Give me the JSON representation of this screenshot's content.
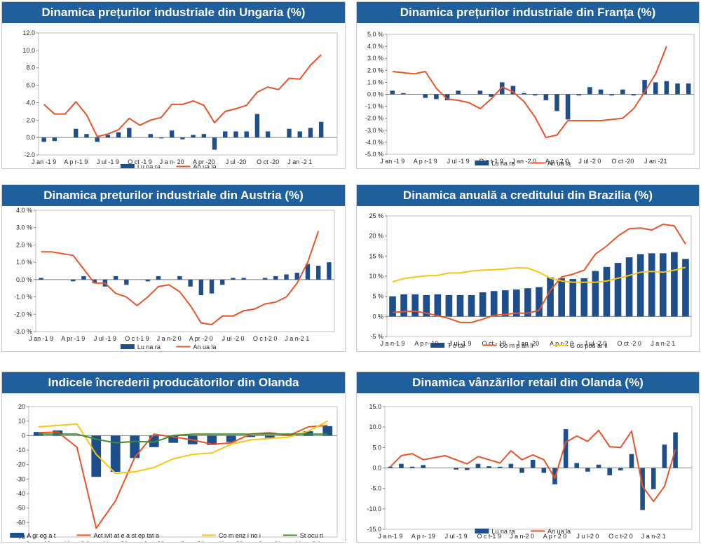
{
  "charts": [
    {
      "title": "Dinamica prețurilor industriale din Ungaria (%)",
      "chart_data": {
        "type": "bar",
        "title": "Dinamica prețurilor industriale din Ungaria (%)",
        "categories": [
          "Jan-19",
          "Feb-19",
          "Mar-19",
          "Apr-19",
          "May-19",
          "Jun-19",
          "Jul-19",
          "Aug-19",
          "Sep-19",
          "Oct-19",
          "Nov-19",
          "Dec-19",
          "Jan-20",
          "Feb-20",
          "Mar-20",
          "Apr-20",
          "May-20",
          "Jun-20",
          "Jul-20",
          "Aug-20",
          "Sep-20",
          "Oct-20",
          "Nov-20",
          "Dec-20",
          "Jan-21",
          "Feb-21",
          "Mar-21",
          "Apr-21"
        ],
        "x_tick_labels": [
          "J an -1 9",
          "A p r-1 9",
          "J ul -1 9",
          "O ct -1 9",
          "J a n- 20",
          "A pr -20",
          "J ul -20",
          "O ct -20",
          "J an -2 1"
        ],
        "x_tick_every": 3,
        "y_tick_labels": [
          "-2.0",
          "0.0",
          "2.0",
          "4.0",
          "6.0",
          "8.0",
          "10.0",
          "12.0"
        ],
        "ylim": [
          -2,
          12
        ],
        "y_step": 2,
        "series": [
          {
            "name": "Lu na ra",
            "kind": "bar",
            "color": "#1f4e8c",
            "values": [
              -0.5,
              -0.4,
              0,
              1.0,
              0.4,
              -0.5,
              0.3,
              0.6,
              1.1,
              0,
              0.4,
              -0.1,
              0.8,
              -0.2,
              0.3,
              0.4,
              -1.4,
              0.7,
              0.7,
              0.7,
              2.7,
              0.7,
              0,
              1.0,
              0.7,
              1.1,
              1.8,
              null
            ]
          },
          {
            "name": "An ua la",
            "kind": "line",
            "color": "#e8542a",
            "values": [
              3.8,
              2.7,
              2.7,
              4.1,
              2.6,
              0.1,
              0.4,
              0.9,
              2.2,
              1.4,
              2.0,
              2.3,
              3.8,
              3.8,
              4.2,
              3.7,
              1.7,
              3.0,
              3.3,
              3.7,
              5.2,
              5.8,
              5.5,
              6.8,
              6.7,
              8.3,
              9.5,
              null
            ]
          }
        ]
      }
    },
    {
      "title": "Dinamica prețurilor industriale din Franța (%)",
      "chart_data": {
        "type": "bar",
        "title": "Dinamica prețurilor industriale din Franța (%)",
        "categories": [
          "Jan-19",
          "Feb-19",
          "Mar-19",
          "Apr-19",
          "May-19",
          "Jun-19",
          "Jul-19",
          "Aug-19",
          "Sep-19",
          "Oct-19",
          "Nov-19",
          "Dec-19",
          "Jan-20",
          "Feb-20",
          "Mar-20",
          "Apr-20",
          "May-20",
          "Jun-20",
          "Jul-20",
          "Aug-20",
          "Sep-20",
          "Oct-20",
          "Nov-20",
          "Dec-20",
          "Jan-21",
          "Feb-21",
          "Mar-21",
          "Apr-21"
        ],
        "x_tick_labels": [
          "J an -1 9",
          "A p r-1 9",
          "J ul -1 9",
          "O c t-1 9",
          "J an -2 0",
          "A p r 2 0",
          "J ul -2 0",
          "O ct -20",
          "J an -21"
        ],
        "x_tick_every": 3,
        "y_tick_labels": [
          "-5.0 %",
          "-4.0 %",
          "-3.0 %",
          "-2.0 %",
          "-1.0 %",
          "0.0 %",
          "1.0 %",
          "2.0 %",
          "3.0 %",
          "4.0 %",
          "5.0 %"
        ],
        "ylim": [
          -5,
          5
        ],
        "y_step": 1,
        "series": [
          {
            "name": "Lu na ra",
            "kind": "bar",
            "color": "#1f4e8c",
            "values": [
              0.3,
              0.1,
              0,
              -0.3,
              -0.4,
              -0.5,
              0.3,
              0,
              0.3,
              -0.2,
              1.0,
              0.7,
              0.1,
              -0.1,
              -0.5,
              -1.4,
              -2.1,
              -0.1,
              0.6,
              0.4,
              -0.1,
              0.4,
              -0.1,
              1.2,
              1.0,
              1.1,
              0.9,
              0.9
            ]
          },
          {
            "name": "An ua la",
            "kind": "line",
            "color": "#e8542a",
            "values": [
              1.9,
              1.8,
              1.7,
              1.9,
              0.5,
              -0.4,
              -0.5,
              -0.7,
              -1.2,
              -0.4,
              0.6,
              0.2,
              -0.6,
              -1.9,
              -3.6,
              -3.4,
              -2.2,
              -2.2,
              -2.2,
              -2.2,
              -2.1,
              -2.0,
              -1.2,
              0.2,
              1.7,
              4.0,
              null,
              null
            ]
          }
        ]
      }
    },
    {
      "title": "Dinamica prețurilor industriale din Austria (%)",
      "chart_data": {
        "type": "bar",
        "title": "Dinamica prețurilor industriale din Austria (%)",
        "categories": [
          "Jan-19",
          "Feb-19",
          "Mar-19",
          "Apr-19",
          "May-19",
          "Jun-19",
          "Jul-19",
          "Aug-19",
          "Sep-19",
          "Oct-19",
          "Nov-19",
          "Dec-19",
          "Jan-20",
          "Feb-20",
          "Mar-20",
          "Apr-20",
          "May-20",
          "Jun-20",
          "Jul-20",
          "Aug-20",
          "Sep-20",
          "Oct-20",
          "Nov-20",
          "Dec-20",
          "Jan-21",
          "Feb-21",
          "Mar-21",
          "Apr-21"
        ],
        "x_tick_labels": [
          "J an -1 9",
          "A pr -1 9",
          "J ul -1 9",
          "O c t-1 9",
          "J a n-2 0",
          "A pr -2 0",
          "J ul -2 0",
          "O c t-2 0",
          "J a n-2 1"
        ],
        "x_tick_every": 3,
        "y_tick_labels": [
          "-3.0 %",
          "-2.0 %",
          "-1.0 %",
          "0.0 %",
          "1.0 %",
          "2.0 %",
          "3.0 %",
          "4.0 %"
        ],
        "ylim": [
          -3,
          4
        ],
        "y_step": 1,
        "series": [
          {
            "name": "Lu na ra",
            "kind": "bar",
            "color": "#1f4e8c",
            "values": [
              0.1,
              0,
              0,
              -0.1,
              0.2,
              -0.2,
              -0.4,
              0.2,
              -0.3,
              0,
              -0.1,
              0.2,
              0,
              0.2,
              -0.4,
              -0.9,
              -0.8,
              -0.3,
              0.1,
              0.1,
              0,
              0.1,
              0.2,
              0.3,
              0.4,
              0.9,
              0.8,
              1.0
            ]
          },
          {
            "name": "An ua la",
            "kind": "line",
            "color": "#e8542a",
            "values": [
              1.6,
              1.6,
              1.5,
              1.4,
              0.6,
              -0.2,
              -0.2,
              -0.8,
              -1.0,
              -1.5,
              -1.0,
              -0.4,
              -0.3,
              -0.7,
              -1.5,
              -2.5,
              -2.6,
              -2.1,
              -2.1,
              -1.8,
              -1.7,
              -1.4,
              -1.3,
              -1.0,
              -0.2,
              1.0,
              2.8,
              null
            ]
          }
        ]
      }
    },
    {
      "title": "Dinamica anuală a creditului din Brazilia (%)",
      "chart_data": {
        "type": "bar",
        "title": "Dinamica anuală a creditului din Brazilia (%)",
        "categories": [
          "Jan-19",
          "Feb-19",
          "Mar-19",
          "Apr-19",
          "May-19",
          "Jun-19",
          "Jul-19",
          "Aug-19",
          "Sep-19",
          "Oct-19",
          "Nov-19",
          "Dec-19",
          "Jan-20",
          "Feb-20",
          "Mar-20",
          "Apr-20",
          "May-20",
          "Jun-20",
          "Jul-20",
          "Aug-20",
          "Sep-20",
          "Oct-20",
          "Nov-20",
          "Dec-20",
          "Jan-21",
          "Feb-21",
          "Mar-21"
        ],
        "x_tick_labels": [
          "J a n-1 9",
          "A p r- 19",
          "J ul -1 9",
          "O ct - 19",
          "J an -20",
          "A p r-2 0",
          "J ul -2 0",
          "O ct -2 0",
          "J a n-2 1"
        ],
        "x_tick_every": 3,
        "y_tick_labels": [
          "-5 %",
          "0 %",
          "5 %",
          "10 %",
          "15 %",
          "20 %",
          "25 %"
        ],
        "ylim": [
          -5,
          25
        ],
        "y_step": 5,
        "series": [
          {
            "name": "T o tal",
            "kind": "bar",
            "color": "#1f4e8c",
            "values": [
              5.0,
              5.5,
              5.5,
              5.3,
              5.5,
              5.3,
              5.3,
              5.3,
              6.0,
              6.3,
              6.5,
              6.7,
              7.0,
              7.3,
              9.7,
              9.5,
              9.3,
              9.5,
              11.3,
              12.3,
              13.3,
              14.7,
              15.5,
              15.7,
              15.7,
              16.0,
              14.3
            ]
          },
          {
            "name": "Co m p an ii",
            "kind": "line",
            "color": "#e8542a",
            "values": [
              1.0,
              1.2,
              1.3,
              0.8,
              0.2,
              -0.5,
              -1.5,
              -1.5,
              -0.7,
              0.3,
              0.5,
              0.8,
              0.8,
              1.5,
              6.5,
              9.8,
              10.5,
              11.5,
              15.5,
              17.5,
              20.0,
              21.8,
              22.0,
              21.5,
              22.9,
              22.5,
              18.0
            ]
          },
          {
            "name": "G os pod ar ii",
            "kind": "line",
            "color": "#f6c515",
            "values": [
              8.6,
              9.4,
              9.8,
              10.1,
              10.2,
              10.8,
              10.8,
              11.3,
              11.5,
              11.6,
              11.8,
              12.1,
              12.0,
              11.0,
              9.5,
              8.8,
              8.5,
              8.5,
              8.5,
              8.8,
              9.5,
              10.2,
              11.0,
              11.2,
              11.0,
              11.5,
              12.2
            ]
          }
        ]
      }
    },
    {
      "title": "Indicele încrederii producătorilor din Olanda",
      "chart_data": {
        "type": "bar",
        "title": "Indicele încrederii producătorilor din Olanda",
        "categories": [
          "Jan-20",
          "Feb-20",
          "Mar-20",
          "Apr-20",
          "May-20",
          "Jun-20",
          "Jul-20",
          "Aug-20",
          "Sep-20",
          "Oct-20",
          "Nov-20",
          "Dec-20",
          "Jan-21",
          "Feb-21",
          "Mar-21",
          "Apr-21"
        ],
        "x_tick_labels": [
          "J a n -20",
          "M ar -2 0",
          "M ay -20",
          "J ul -20",
          "S ep -20",
          "N ov -20",
          "J a n-21",
          "M ar -2 1"
        ],
        "x_tick_every": 2,
        "y_tick_labels": [
          "-70",
          "-60",
          "-50",
          "-40",
          "-30",
          "-20",
          "-10",
          "0",
          "10",
          "20"
        ],
        "ylim": [
          -70,
          20
        ],
        "y_step": 10,
        "series": [
          {
            "name": "A gr eg a t",
            "kind": "bar",
            "color": "#1f4e8c",
            "values": [
              2.5,
              3.5,
              null,
              -28.5,
              -25,
              -15.5,
              -8,
              -5,
              -6,
              -6.5,
              -4.5,
              -1,
              -1.5,
              1,
              3,
              6.5
            ]
          },
          {
            "name": "Act ivit at e a st ep tat a",
            "kind": "line",
            "color": "#e8542a",
            "values": [
              2,
              2.5,
              -8,
              -64,
              -45,
              -15,
              1,
              -1,
              -3,
              -6,
              -5,
              1,
              2,
              0,
              6,
              7
            ]
          },
          {
            "name": "Co m enz i no i",
            "kind": "line",
            "color": "#f6c515",
            "values": [
              6,
              7,
              8,
              -13,
              -26,
              -25,
              -22,
              -16,
              -13,
              -12,
              -6,
              -3,
              -2,
              -1,
              3,
              10
            ]
          },
          {
            "name": "St ocu ri",
            "kind": "line",
            "color": "#3d8d2a",
            "values": [
              1,
              1,
              1,
              -2.5,
              -5,
              -4,
              -4.5,
              0,
              1,
              1,
              1,
              1,
              1,
              1,
              1,
              1
            ]
          }
        ]
      }
    },
    {
      "title": "Dinamica vânzărilor retail din Olanda (%)",
      "chart_data": {
        "type": "bar",
        "title": "Dinamica vânzărilor retail din Olanda (%)",
        "categories": [
          "Jan-19",
          "Feb-19",
          "Mar-19",
          "Apr-19",
          "May-19",
          "Jun-19",
          "Jul-19",
          "Aug-19",
          "Sep-19",
          "Oct-19",
          "Nov-19",
          "Dec-19",
          "Jan-20",
          "Feb-20",
          "Mar-20",
          "Apr-20",
          "May-20",
          "Jun-20",
          "Jul-20",
          "Aug-20",
          "Sep-20",
          "Oct-20",
          "Nov-20",
          "Dec-20",
          "Jan-21",
          "Feb-21",
          "Mar-21",
          "Apr-21"
        ],
        "x_tick_labels": [
          "J a n-1 9",
          "A p r- 19",
          "J ul -1 9",
          "O c t-1 9",
          "J a n-2 0",
          "A p r 2 0",
          "J u l-2 0",
          "O c t-2 0",
          "J a n-2 1"
        ],
        "x_tick_every": 3,
        "y_tick_labels": [
          "-15.0",
          "-10.0",
          "-5.0",
          "0.0",
          "5.0",
          "10.0",
          "15.0"
        ],
        "ylim": [
          -15,
          15
        ],
        "y_step": 5,
        "series": [
          {
            "name": "Lu na ra",
            "kind": "bar",
            "color": "#1f4e8c",
            "values": [
              0.3,
              1.0,
              0.3,
              0.7,
              0,
              0,
              -0.4,
              -0.5,
              1.0,
              0.4,
              0.3,
              1.0,
              -1.2,
              2.0,
              -1.2,
              -4.0,
              9.5,
              1.2,
              -0.9,
              0.8,
              -1.8,
              -0.6,
              3.4,
              -10.3,
              -5.2,
              5.7,
              8.7,
              null
            ]
          },
          {
            "name": "An ua la",
            "kind": "line",
            "color": "#e8542a",
            "values": [
              0.3,
              3.0,
              3.5,
              2.0,
              2.5,
              3.0,
              2.0,
              1.0,
              2.8,
              2.0,
              1.2,
              4.2,
              2.0,
              3.2,
              2.0,
              -2.5,
              6.3,
              7.8,
              6.5,
              9.2,
              5.2,
              5.0,
              9.0,
              -4.5,
              -8.2,
              -4.5,
              4.5,
              null
            ]
          }
        ]
      }
    }
  ]
}
